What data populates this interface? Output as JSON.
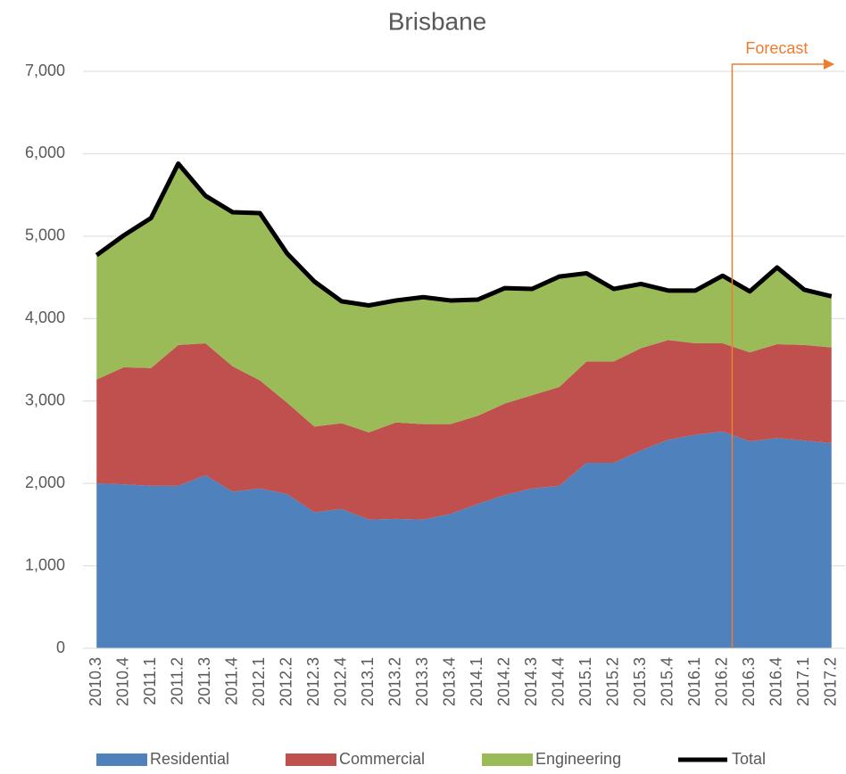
{
  "chart_data": {
    "type": "area",
    "title": "Brisbane",
    "categories": [
      "2010.3",
      "2010.4",
      "2011.1",
      "2011.2",
      "2011.3",
      "2011.4",
      "2012.1",
      "2012.2",
      "2012.3",
      "2012.4",
      "2013.1",
      "2013.2",
      "2013.3",
      "2013.4",
      "2014.1",
      "2014.2",
      "2014.3",
      "2014.4",
      "2015.1",
      "2015.2",
      "2015.3",
      "2015.4",
      "2016.1",
      "2016.2",
      "2016.3",
      "2016.4",
      "2017.1",
      "2017.2"
    ],
    "series": [
      {
        "name": "Residential",
        "color": "#4f81bd",
        "type": "area",
        "values": [
          2000,
          1990,
          1970,
          1970,
          2100,
          1900,
          1940,
          1870,
          1650,
          1690,
          1560,
          1570,
          1560,
          1630,
          1750,
          1860,
          1940,
          1970,
          2250,
          2250,
          2400,
          2530,
          2590,
          2630,
          2510,
          2550,
          2520,
          2490
        ]
      },
      {
        "name": "Commercial",
        "color": "#c0504d",
        "type": "area",
        "values": [
          1260,
          1420,
          1430,
          1710,
          1600,
          1520,
          1310,
          1110,
          1040,
          1040,
          1060,
          1170,
          1160,
          1090,
          1070,
          1110,
          1130,
          1200,
          1230,
          1230,
          1240,
          1210,
          1110,
          1070,
          1080,
          1140,
          1160,
          1160
        ]
      },
      {
        "name": "Engineering",
        "color": "#9bbb59",
        "type": "area",
        "values": [
          1510,
          1600,
          1820,
          2200,
          1790,
          1870,
          2030,
          1810,
          1760,
          1480,
          1540,
          1480,
          1540,
          1500,
          1410,
          1400,
          1290,
          1340,
          1070,
          880,
          780,
          600,
          640,
          820,
          740,
          930,
          670,
          620
        ]
      },
      {
        "name": "Total",
        "color": "#000000",
        "type": "line",
        "values": [
          4770,
          5010,
          5220,
          5880,
          5490,
          5290,
          5280,
          4790,
          4450,
          4210,
          4160,
          4220,
          4260,
          4220,
          4230,
          4370,
          4360,
          4510,
          4550,
          4360,
          4420,
          4340,
          4340,
          4520,
          4330,
          4620,
          4350,
          4270
        ]
      }
    ],
    "ylim": [
      0,
      7000
    ],
    "yticks": [
      0,
      {
        "value": 1000,
        "label": "1,000"
      },
      {
        "value": 2000,
        "label": "2,000"
      },
      {
        "value": 3000,
        "label": "3,000"
      },
      {
        "value": 4000,
        "label": "4,000"
      },
      {
        "value": 5000,
        "label": "5,000"
      },
      {
        "value": 6000,
        "label": "6,000"
      },
      {
        "value": 7000,
        "label": "7,000"
      }
    ],
    "grid": true,
    "legend": "bottom",
    "annotation": {
      "text": "Forecast",
      "x": "2016.2",
      "color": "#ed7d31"
    }
  }
}
